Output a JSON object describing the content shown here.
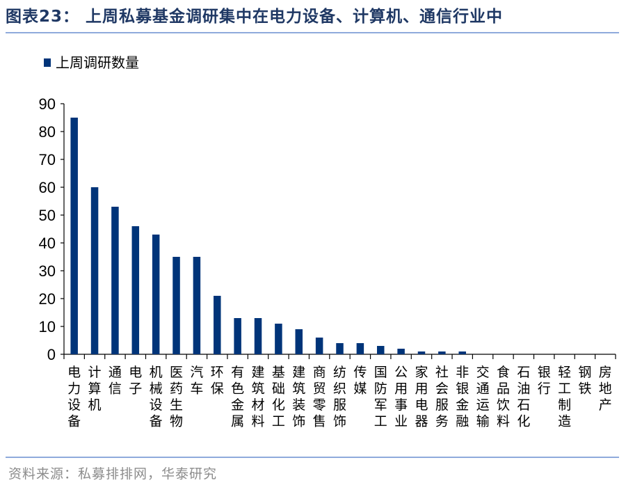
{
  "header": {
    "title": "图表23： 上周私募基金调研集中在电力设备、计算机、通信行业中"
  },
  "footer": {
    "source": "资料来源：私募排排网，华泰研究"
  },
  "colors": {
    "bar": "#003479",
    "title": "#1f3864",
    "rule": "#8faadc"
  },
  "chart_data": {
    "type": "bar",
    "title": "",
    "xlabel": "",
    "ylabel": "",
    "ylim": [
      0,
      90
    ],
    "yticks": [
      0,
      10,
      20,
      30,
      40,
      50,
      60,
      70,
      80,
      90
    ],
    "legend_position": "top-left",
    "grid": false,
    "categories": [
      "电力设备",
      "计算机",
      "通信",
      "电子",
      "机械设备",
      "医药生物",
      "汽车",
      "环保",
      "有色金属",
      "建筑材料",
      "基础化工",
      "建筑装饰",
      "商贸零售",
      "纺织服饰",
      "传媒",
      "国防军工",
      "公用事业",
      "家用电器",
      "社会服务",
      "非银金融",
      "交通运输",
      "食品饮料",
      "石油石化",
      "银行",
      "轻工制造",
      "钢铁",
      "房地产"
    ],
    "series": [
      {
        "name": "上周调研数量",
        "values": [
          85,
          60,
          53,
          46,
          43,
          35,
          35,
          21,
          13,
          13,
          11,
          9,
          6,
          4,
          4,
          3,
          2,
          1,
          1,
          1,
          0,
          0,
          0,
          0,
          0,
          0,
          0
        ]
      }
    ]
  }
}
